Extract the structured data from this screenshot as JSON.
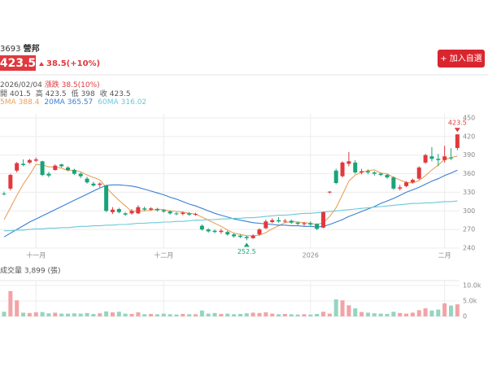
{
  "header": {
    "code": "3693",
    "name": "營邦",
    "change": "38.5(+10%)",
    "button": "+ 加入自選"
  },
  "info": {
    "date": "2026/02/04",
    "change": "漲跌 38.5(10%)",
    "open_label": "開",
    "high_label": "高",
    "low_label": "低",
    "close_label": "收"
  },
  "chart_data": [
    {
      "type": "candlestick",
      "up_color": "#e0393e",
      "down_color": "#1aa37a",
      "x": [
        null,
        null,
        null,
        null,
        null,
        "十一月",
        null,
        null,
        null,
        null,
        null,
        null,
        null,
        null,
        null,
        null,
        null,
        null,
        null,
        null,
        null,
        null,
        null,
        null,
        null,
        "十二月",
        null,
        null,
        null,
        null,
        null,
        null,
        null,
        null,
        null,
        null,
        null,
        null,
        null,
        null,
        null,
        null,
        null,
        null,
        null,
        null,
        null,
        null,
        "2026",
        null,
        null,
        null,
        null,
        null,
        null,
        null,
        null,
        null,
        null,
        null,
        null,
        null,
        null,
        null,
        null,
        null,
        null,
        null,
        null,
        "二月",
        null,
        null
      ],
      "open": [
        328,
        336,
        365,
        376,
        378,
        381,
        380,
        360,
        366,
        375,
        370,
        366,
        360,
        352,
        344,
        342,
        341,
        298,
        303,
        296,
        296,
        296,
        304,
        302,
        303,
        301,
        299,
        296,
        295,
        296,
        294,
        276,
        270,
        268,
        266,
        266,
        262,
        260,
        258,
        256,
        262,
        272,
        282,
        285,
        283,
        284,
        281,
        279,
        280,
        279,
        273,
        330,
        365,
        356,
        376,
        378,
        362,
        364,
        362,
        360,
        358,
        354,
        336,
        340,
        346,
        352,
        378,
        388,
        384,
        382,
        386,
        401.5
      ],
      "high": [
        331,
        360,
        379,
        383,
        384,
        386,
        381,
        363,
        375,
        376,
        372,
        368,
        362,
        355,
        347,
        346,
        342,
        306,
        305,
        298,
        303,
        309,
        307,
        306,
        305,
        303,
        301,
        298,
        299,
        298,
        297,
        278,
        272,
        270,
        271,
        268,
        264,
        262,
        260,
        262,
        272,
        286,
        288,
        290,
        287,
        286,
        283,
        282,
        283,
        280,
        299,
        332,
        368,
        380,
        395,
        382,
        368,
        367,
        364,
        362,
        360,
        356,
        342,
        348,
        352,
        372,
        392,
        403,
        392,
        405,
        401,
        423.5
      ],
      "low": [
        325,
        333,
        362,
        372,
        376,
        379,
        356,
        354,
        365,
        370,
        364,
        358,
        353,
        344,
        339,
        338,
        298,
        295,
        296,
        292,
        294,
        295,
        300,
        300,
        299,
        297,
        294,
        293,
        293,
        292,
        292,
        268,
        265,
        264,
        263,
        260,
        257,
        256,
        252.5,
        255,
        260,
        271,
        280,
        281,
        281,
        279,
        277,
        276,
        276,
        269,
        272,
        328,
        343,
        354,
        372,
        360,
        359,
        359,
        357,
        356,
        352,
        334,
        333,
        338,
        344,
        350,
        376,
        380,
        372,
        378,
        382,
        398
      ],
      "close": [
        327,
        358,
        377,
        374,
        382,
        383,
        358,
        357,
        373,
        372,
        366,
        360,
        356,
        346,
        341,
        344,
        300,
        302,
        298,
        294,
        300,
        306,
        302,
        304,
        301,
        299,
        296,
        295,
        297,
        294,
        295,
        270,
        267,
        266,
        268,
        262,
        259,
        258,
        256,
        260,
        270,
        283,
        285,
        283,
        284,
        281,
        279,
        280,
        278,
        271,
        298,
        331,
        345,
        378,
        380,
        362,
        364,
        362,
        360,
        358,
        354,
        336,
        338,
        346,
        350,
        370,
        390,
        384,
        382,
        388,
        385,
        423.5
      ],
      "ylim": [
        240,
        450
      ],
      "yticks": [
        240,
        270,
        300,
        330,
        360,
        390,
        420,
        450
      ],
      "grid": true,
      "series": [
        {
          "name": "5MA",
          "color": "#e8a25a",
          "values": [
            286,
            305,
            325,
            343,
            358,
            375,
            374,
            371,
            371,
            369,
            365,
            366,
            363,
            358,
            354,
            350,
            338,
            327,
            317,
            308,
            299,
            300,
            300,
            301,
            303,
            302,
            300,
            299,
            298,
            296,
            295,
            290,
            285,
            280,
            275,
            269,
            264,
            262,
            260,
            260,
            261,
            265,
            271,
            276,
            281,
            283,
            282,
            281,
            280,
            278,
            281,
            291,
            305,
            326,
            348,
            358,
            362,
            365,
            366,
            361,
            360,
            354,
            350,
            346,
            345,
            349,
            357,
            366,
            374,
            383,
            386,
            388.4
          ]
        },
        {
          "name": "20MA",
          "color": "#3a7fd5",
          "values": [
            258,
            264,
            270,
            276,
            282,
            287,
            292,
            297,
            302,
            307,
            312,
            317,
            322,
            327,
            332,
            337,
            341,
            342,
            342,
            341,
            340,
            338,
            335,
            332,
            329,
            326,
            322,
            319,
            315,
            311,
            308,
            304,
            300,
            296,
            293,
            290,
            287,
            285,
            283,
            281,
            280,
            279,
            278,
            277,
            277,
            276,
            276,
            275,
            275,
            274,
            275,
            278,
            282,
            286,
            291,
            295,
            299,
            303,
            307,
            312,
            316,
            320,
            325,
            330,
            334,
            338,
            343,
            348,
            352,
            357,
            361,
            365.57
          ]
        },
        {
          "name": "60MA",
          "color": "#6cc8d8",
          "values": [
            268,
            268,
            269,
            269,
            270,
            271,
            271,
            272,
            272,
            273,
            273,
            274,
            275,
            275,
            276,
            276,
            277,
            277,
            278,
            278,
            279,
            280,
            280,
            281,
            281,
            282,
            282,
            283,
            283,
            284,
            285,
            285,
            286,
            286,
            287,
            287,
            288,
            288,
            289,
            289,
            290,
            291,
            292,
            293,
            293,
            294,
            295,
            296,
            296,
            297,
            298,
            299,
            300,
            301,
            302,
            303,
            304,
            305,
            306,
            307,
            308,
            309,
            310,
            311,
            312,
            312,
            313,
            313,
            314,
            315,
            315,
            316.02
          ]
        }
      ]
    },
    {
      "type": "bar",
      "title": "成交量 3,899 (張)",
      "up_color": "#f3a3a6",
      "down_color": "#93d6bf",
      "values": [
        1500,
        8200,
        5200,
        1200,
        1100,
        1300,
        1400,
        1000,
        1200,
        900,
        900,
        1000,
        900,
        1100,
        800,
        1000,
        1600,
        1300,
        1500,
        900,
        800,
        1300,
        700,
        800,
        700,
        900,
        700,
        600,
        800,
        700,
        700,
        1900,
        900,
        1100,
        800,
        900,
        700,
        800,
        1000,
        1200,
        1100,
        1300,
        900,
        700,
        800,
        700,
        600,
        700,
        600,
        800,
        1500,
        900,
        5500,
        5200,
        3600,
        2600,
        1400,
        1200,
        1000,
        900,
        800,
        1500,
        1100,
        900,
        1200,
        2000,
        2600,
        1900,
        2200,
        4200,
        3500,
        3899
      ],
      "ylim": [
        0,
        10000
      ],
      "yticks": [
        0,
        {
          "value": 5000,
          "label": "5.0k"
        },
        {
          "value": 10000,
          "label": "10.0k"
        }
      ]
    }
  ]
}
